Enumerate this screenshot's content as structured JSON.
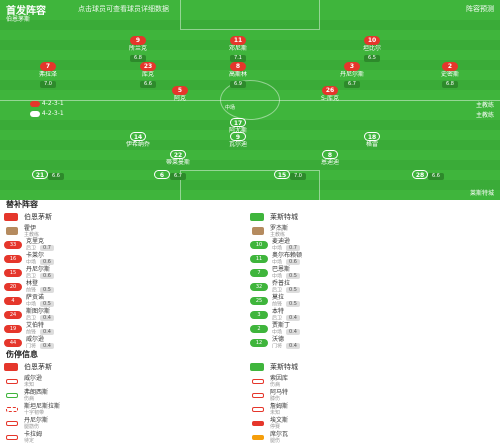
{
  "header": {
    "title": "首发阵容",
    "subtitle": "点击球员可查看球员详细数据",
    "right": "阵容预测"
  },
  "home_label_top": "伯恩茅斯",
  "home_formation": "4-2-3-1",
  "home_coach": "主教练",
  "away_label_top": "莱斯特城",
  "away_formation": "4-2-3-1",
  "away_coach": "主教练",
  "pitch_center": "中场",
  "home_players": [
    {
      "num": "9",
      "name": "所兰克",
      "rating": "6.8"
    },
    {
      "num": "11",
      "name": "邓尼斯",
      "rating": "7.1"
    },
    {
      "num": "10",
      "name": "坦比尔",
      "rating": "6.5"
    },
    {
      "num": "7",
      "name": "弗拉泽",
      "rating": "7.0"
    },
    {
      "num": "23",
      "name": "库克",
      "rating": "6.6"
    },
    {
      "num": "8",
      "name": "高斯林",
      "rating": "6.9"
    },
    {
      "num": "3",
      "name": "丹尼尔斯",
      "rating": "6.7"
    },
    {
      "num": "2",
      "name": "史密斯",
      "rating": "6.8"
    },
    {
      "num": "5",
      "name": "阿克",
      "rating": "7.2"
    },
    {
      "num": "26",
      "name": "S-库克",
      "rating": "7.0"
    },
    {
      "num": "1",
      "name": "博鲁茨",
      "rating": "6.4"
    }
  ],
  "away_players": [
    {
      "num": "17",
      "name": "阿尤斯",
      "rating": "6.5"
    },
    {
      "num": "14",
      "name": "伊希纳乔",
      "rating": "6.9"
    },
    {
      "num": "9",
      "name": "瓦尔迪",
      "rating": "7.3"
    },
    {
      "num": "18",
      "name": "格雷",
      "rating": "6.8"
    },
    {
      "num": "22",
      "name": "蒂莱曼斯",
      "rating": "6.7"
    },
    {
      "num": "8",
      "name": "恩迪迪",
      "rating": "7.1"
    },
    {
      "num": "21",
      "name": "佩雷拉",
      "rating": "6.6"
    },
    {
      "num": "6",
      "name": "摩根",
      "rating": "6.7"
    },
    {
      "num": "15",
      "name": "马圭尔",
      "rating": "7.0"
    },
    {
      "num": "28",
      "name": "奇尔维尔",
      "rating": "6.6"
    },
    {
      "num": "1",
      "name": "舒梅切尔",
      "rating": "6.7"
    }
  ],
  "subs_title": "替补阵容",
  "injury_title": "伤停信息",
  "home_team": "伯恩茅斯",
  "away_team": "莱斯特城",
  "home_subs": [
    {
      "num": "",
      "name": "霍伊",
      "pos": "主教练",
      "val": ""
    },
    {
      "num": "33",
      "name": "克里克",
      "pos": "后卫",
      "val": "0.7"
    },
    {
      "num": "16",
      "name": "卡莱尔",
      "pos": "中场",
      "val": "0.6"
    },
    {
      "num": "15",
      "name": "丹尼尔斯",
      "pos": "后卫",
      "val": "0.6"
    },
    {
      "num": "20",
      "name": "林登",
      "pos": "前锋",
      "val": "0.5"
    },
    {
      "num": "4",
      "name": "萨贡诺",
      "pos": "中场",
      "val": "0.5"
    },
    {
      "num": "24",
      "name": "斯图尔斯",
      "pos": "后卫",
      "val": "0.4"
    },
    {
      "num": "19",
      "name": "艾伯特",
      "pos": "前锋",
      "val": "0.4"
    },
    {
      "num": "44",
      "name": "威尔逊",
      "pos": "门将",
      "val": "0.4"
    }
  ],
  "away_subs": [
    {
      "num": "",
      "name": "罗杰斯",
      "pos": "主教练",
      "val": ""
    },
    {
      "num": "10",
      "name": "麦迪逊",
      "pos": "中场",
      "val": "0.7"
    },
    {
      "num": "11",
      "name": "奥尔布赖顿",
      "pos": "中场",
      "val": "0.6"
    },
    {
      "num": "7",
      "name": "巴恩斯",
      "pos": "中场",
      "val": "0.5"
    },
    {
      "num": "32",
      "name": "乔普拉",
      "pos": "后卫",
      "val": "0.5"
    },
    {
      "num": "25",
      "name": "莫拉",
      "pos": "前锋",
      "val": "0.5"
    },
    {
      "num": "3",
      "name": "本特",
      "pos": "后卫",
      "val": "0.4"
    },
    {
      "num": "2",
      "name": "贾斯丁",
      "pos": "中场",
      "val": "0.4"
    },
    {
      "num": "12",
      "name": "沃德",
      "pos": "门将",
      "val": "0.4"
    }
  ],
  "home_injuries": [
    {
      "name": "威尔逊",
      "note": "未知"
    },
    {
      "name": "弗朗西斯",
      "note": "伤病"
    },
    {
      "name": "斯坦尼斯拉斯",
      "note": "十字韧带"
    },
    {
      "name": "丹尼尔斯",
      "note": "腿筋伤"
    },
    {
      "name": "卡拉姆",
      "note": "待定"
    }
  ],
  "away_injuries": [
    {
      "name": "索因库",
      "note": "伤病"
    },
    {
      "name": "阿马特",
      "note": "膝伤"
    },
    {
      "name": "詹姆斯",
      "note": "未知"
    },
    {
      "name": "埃文斯",
      "note": "停赛"
    },
    {
      "name": "席尔瓦",
      "note": "腿伤"
    }
  ],
  "colors": {
    "home": "#e5362b",
    "away": "#3fb53c",
    "pitch": "#3fb53c"
  }
}
